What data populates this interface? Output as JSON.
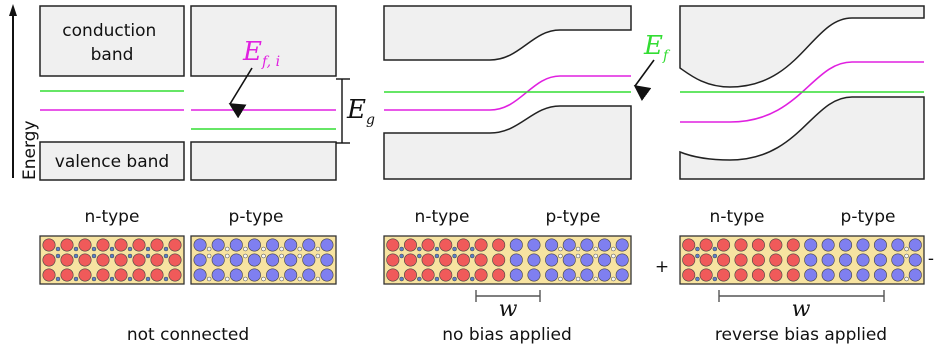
{
  "axis": {
    "label": "Energy"
  },
  "bands": {
    "conduction": [
      "conduction",
      "band"
    ],
    "valence": "valence band"
  },
  "symbols": {
    "intrinsic_fermi_main": "E",
    "intrinsic_fermi_sub": "f, i",
    "gap_main": "E",
    "gap_sub": "g",
    "fermi_main": "E",
    "fermi_sub": "f",
    "depletion": "w"
  },
  "panels": [
    {
      "left_type": "n-type",
      "right_type": "p-type",
      "caption": "not connected"
    },
    {
      "left_type": "n-type",
      "right_type": "p-type",
      "caption": "no bias applied"
    },
    {
      "left_type": "n-type",
      "right_type": "p-type",
      "caption": "reverse bias applied"
    }
  ],
  "bias_terminals": {
    "positive": "+",
    "negative": "-"
  },
  "colors": {
    "band_fill": "#f0f0f0",
    "fermi_level": "#33dd33",
    "intrinsic_level": "#e020e0",
    "lattice_bg": "#f7e3a1",
    "n_atom": "#f05a5a",
    "p_atom": "#7f7ff0",
    "carrier": "#5b7fc9"
  }
}
